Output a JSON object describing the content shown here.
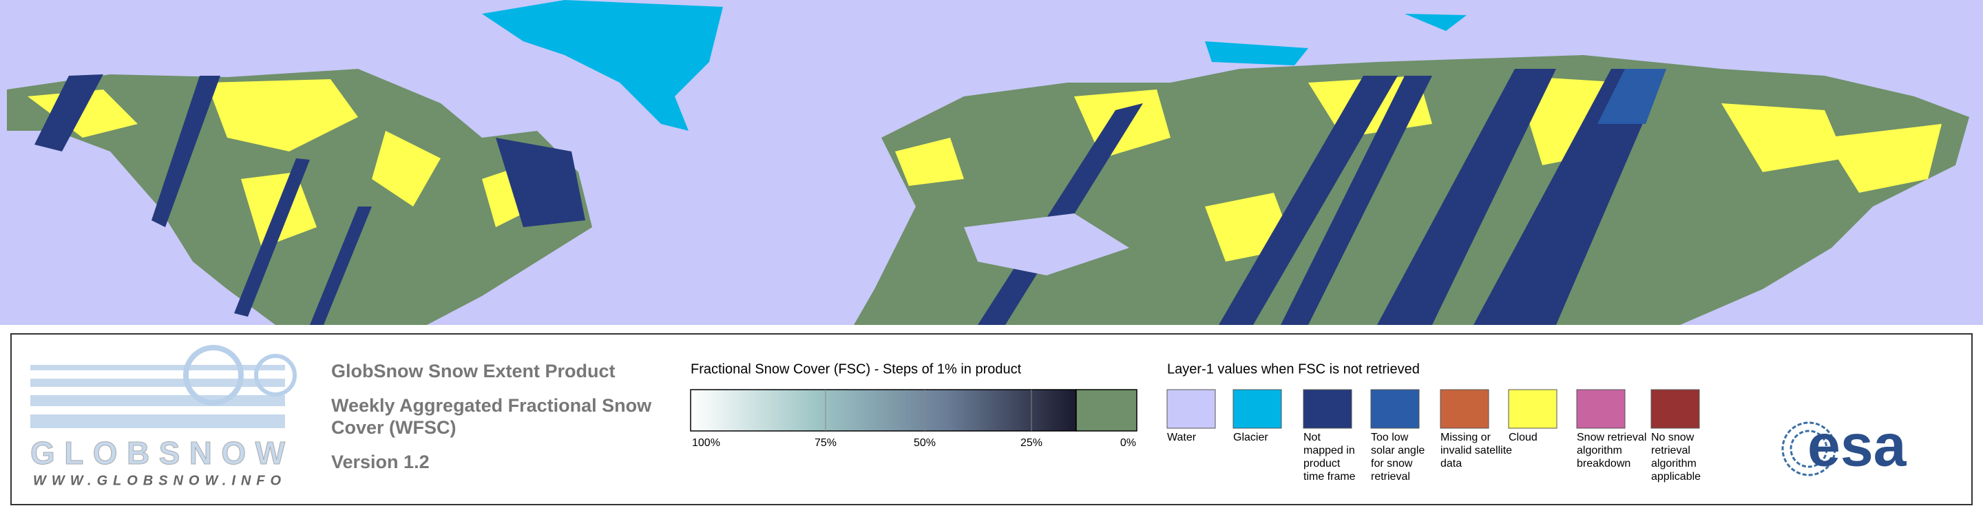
{
  "product": {
    "title": "GlobSnow Snow Extent Product",
    "subtitle_lines": [
      "Weekly Aggregated Fractional Snow",
      "Cover (WFSC)"
    ],
    "version": "Version 1.2"
  },
  "logo": {
    "name": "GLOBSNOW",
    "url": "WWW.GLOBSNOW.INFO",
    "agency": "esa"
  },
  "colorbar": {
    "title": "Fractional Snow Cover (FSC) - Steps of 1% in product",
    "ticks": [
      "100%",
      "75%",
      "50%",
      "25%",
      "0%"
    ],
    "gradient": [
      "#ffffff",
      "#9cc4c4",
      "#6a7c96",
      "#1a1a2e"
    ],
    "land_color": "#6f906a"
  },
  "classes": {
    "title": "Layer-1 values when FSC is not retrieved",
    "items": [
      {
        "color": "#c8c8fa",
        "lines": [
          "Water"
        ]
      },
      {
        "color": "#00b4e6",
        "lines": [
          "Glacier"
        ]
      },
      {
        "color": "#253a7c",
        "lines": [
          "Not",
          "mapped in",
          "product",
          "time frame"
        ]
      },
      {
        "color": "#2a5ca8",
        "lines": [
          "Too low",
          "solar angle",
          "for snow",
          "retrieval"
        ]
      },
      {
        "color": "#c8643c",
        "lines": [
          "Missing or",
          "invalid satellite",
          "data"
        ]
      },
      {
        "color": "#ffff50",
        "lines": [
          "Cloud"
        ]
      },
      {
        "color": "#c864a0",
        "lines": [
          "Snow retrieval",
          "algorithm",
          "breakdown"
        ]
      },
      {
        "color": "#963232",
        "lines": [
          "No snow",
          "retrieval",
          "algorithm",
          "applicable"
        ]
      }
    ]
  }
}
